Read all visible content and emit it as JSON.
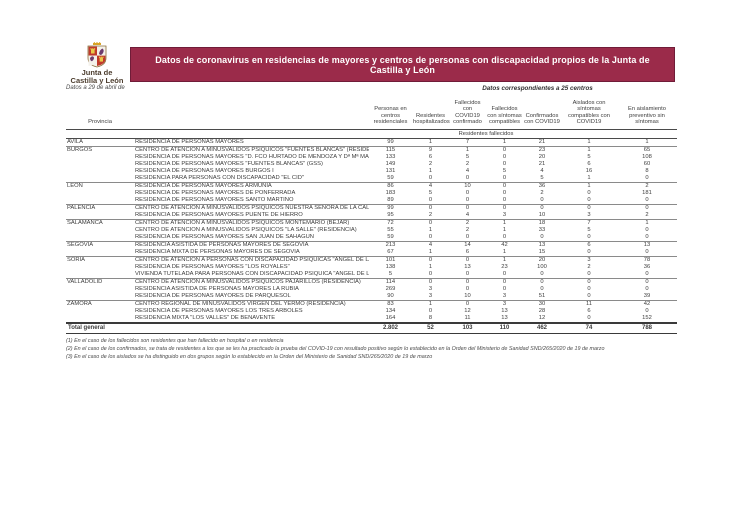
{
  "logo": {
    "line1": "Junta de",
    "line2": "Castilla y León"
  },
  "header": {
    "title": "Datos de coronavirus en residencias de mayores y centros de personas con discapacidad propios de la Junta de Castilla y León",
    "date_note": "Datos a 29 de abril de",
    "centers_note": "Datos correspondientes a 25 centros",
    "banner_color": "#9b2b4a"
  },
  "table": {
    "provincia_header": "Provincia",
    "subheader": "Residentes fallecidos",
    "columns": [
      "Personas en centros residenciales",
      "Residentes hospitalizados",
      "Fallecidos con COVID19 confirmado",
      "Fallecidos con síntomas compatibles",
      "Confirmados con COVID19",
      "Aislados con síntomas compatibles con COVID19",
      "En aislamiento preventivo sin síntomas"
    ],
    "rows": [
      {
        "provincia": "AVILA",
        "group_start": false,
        "centro": "RESIDENCIA DE PERSONAS MAYORES",
        "values": [
          99,
          1,
          7,
          1,
          21,
          1,
          1
        ]
      },
      {
        "provincia": "BURGOS",
        "group_start": true,
        "centro": "CENTRO DE ATENCION A MINUSVALIDOS PSIQUICOS \"FUENTES BLANCAS\" (RESIDENCIA",
        "values": [
          115,
          9,
          1,
          0,
          23,
          1,
          65
        ]
      },
      {
        "provincia": "",
        "group_start": false,
        "centro": "RESIDENCIA DE PERSONAS MAYORES \"D. FCO HURTADO DE MENDOZA Y Dª Mª MARDOM",
        "values": [
          133,
          6,
          5,
          0,
          20,
          5,
          108
        ]
      },
      {
        "provincia": "",
        "group_start": false,
        "centro": "RESIDENCIA DE PERSONAS MAYORES \"FUENTES BLANCAS\" (GSS)",
        "values": [
          149,
          2,
          2,
          0,
          21,
          6,
          60
        ]
      },
      {
        "provincia": "",
        "group_start": false,
        "centro": "RESIDENCIA DE PERSONAS MAYORES BURGOS I",
        "values": [
          131,
          1,
          4,
          5,
          4,
          16,
          8
        ]
      },
      {
        "provincia": "",
        "group_start": false,
        "centro": "RESIDENCIA PARA PERSONAS CON DISCAPACIDAD  \"EL CID\"",
        "values": [
          59,
          0,
          0,
          0,
          5,
          1,
          0
        ]
      },
      {
        "provincia": "LEON",
        "group_start": true,
        "centro": "RESIDENCIA DE PERSONAS MAYORES ARMUNIA",
        "values": [
          86,
          4,
          10,
          0,
          36,
          1,
          2
        ]
      },
      {
        "provincia": "",
        "group_start": false,
        "centro": "RESIDENCIA DE PERSONAS MAYORES DE PONFERRADA",
        "values": [
          183,
          5,
          0,
          0,
          2,
          0,
          181
        ]
      },
      {
        "provincia": "",
        "group_start": false,
        "centro": "RESIDENCIA DE PERSONAS MAYORES SANTO MARTINO",
        "values": [
          89,
          0,
          0,
          0,
          0,
          0,
          0
        ]
      },
      {
        "provincia": "PALENCIA",
        "group_start": true,
        "centro": "CENTRO DE ATENCION A MINUSVALIDOS PSIQUICOS NUESTRA SEÑORA DE LA CALLE",
        "values": [
          99,
          0,
          0,
          0,
          0,
          0,
          0
        ]
      },
      {
        "provincia": "",
        "group_start": false,
        "centro": "RESIDENCIA DE PERSONAS MAYORES PUENTE DE HIERRO",
        "values": [
          95,
          2,
          4,
          3,
          10,
          3,
          2
        ]
      },
      {
        "provincia": "SALAMANCA",
        "group_start": true,
        "centro": "CENTRO DE ATENCION A MINUSVALIDOS PSIQUICOS MONTEMARIO (BEJAR)",
        "values": [
          72,
          0,
          2,
          1,
          18,
          7,
          1
        ]
      },
      {
        "provincia": "",
        "group_start": false,
        "centro": "CENTRO DE ATENCION A MINUSVALIDOS PSIQUICOS \"LA SALLE\" (RESIDENCIA)",
        "values": [
          55,
          1,
          2,
          1,
          33,
          5,
          0
        ]
      },
      {
        "provincia": "",
        "group_start": false,
        "centro": "RESIDENCIA DE PERSONAS MAYORES SAN JUAN DE SAHAGUN",
        "values": [
          59,
          0,
          0,
          0,
          0,
          0,
          0
        ]
      },
      {
        "provincia": "SEGOVIA",
        "group_start": true,
        "centro": "RESIDENCIA ASISTIDA DE PERSONAS MAYORES DE SEGOVIA",
        "values": [
          213,
          4,
          14,
          42,
          13,
          6,
          13
        ]
      },
      {
        "provincia": "",
        "group_start": false,
        "centro": "RESIDENCIA MIXTA DE PERSONAS MAYORES DE SEGOVIA",
        "values": [
          67,
          1,
          6,
          1,
          15,
          0,
          0
        ]
      },
      {
        "provincia": "SORIA",
        "group_start": true,
        "centro": "CENTRO DE ATENCION A PERSONAS CON DISCAPACIDAD PSIQUICAS \"ANGEL DE LA GU",
        "values": [
          101,
          0,
          0,
          1,
          20,
          3,
          78
        ]
      },
      {
        "provincia": "",
        "group_start": false,
        "centro": "RESIDENCIA DE PERSONAS MAYORES \"LOS ROYALES\"",
        "values": [
          138,
          1,
          13,
          23,
          100,
          2,
          36
        ]
      },
      {
        "provincia": "",
        "group_start": false,
        "centro": "VIVIENDA TUTELADA PARA PERSONAS CON DISCAPACIDAD PSIQUICA \"ANGEL DE LA GU",
        "values": [
          5,
          0,
          0,
          0,
          0,
          0,
          0
        ]
      },
      {
        "provincia": "VALLADOLID",
        "group_start": true,
        "centro": "CENTRO DE ATENCION A MINUSVALIDOS PSIQUICOS PAJARILLOS (RESIDENCIA)",
        "values": [
          114,
          0,
          0,
          0,
          0,
          0,
          0
        ]
      },
      {
        "provincia": "",
        "group_start": false,
        "centro": "RESIDENCIA ASISTIDA DE PERSONAS MAYORES LA RUBIA",
        "values": [
          269,
          3,
          0,
          0,
          0,
          0,
          0
        ]
      },
      {
        "provincia": "",
        "group_start": false,
        "centro": "RESIDENCIA DE PERSONAS MAYORES DE PARQUESOL",
        "values": [
          90,
          3,
          10,
          3,
          51,
          0,
          39
        ]
      },
      {
        "provincia": "ZAMORA",
        "group_start": true,
        "centro": "CENTRO REGIONAL DE MINUSVALIDOS VIRGEN DEL YERMO (RESIDENCIA)",
        "values": [
          83,
          1,
          0,
          3,
          30,
          11,
          42
        ]
      },
      {
        "provincia": "",
        "group_start": false,
        "centro": "RESIDENCIA DE PERSONAS MAYORES LOS TRES ARBOLES",
        "values": [
          134,
          0,
          12,
          13,
          28,
          6,
          0
        ]
      },
      {
        "provincia": "",
        "group_start": false,
        "centro": "RESIDENCIA MIXTA \"LOS VALLES\"  DE BENAVENTE",
        "values": [
          164,
          8,
          11,
          13,
          12,
          0,
          152
        ]
      }
    ],
    "total": {
      "label": "Total general",
      "values": [
        "2.802",
        "52",
        "103",
        "110",
        "462",
        "74",
        "788"
      ]
    }
  },
  "footnotes": [
    "(1) En el caso de los fallecidos son residentes que han fallecido en hospital o en residencia",
    "(2) En el caso de los confirmados, se trata de residentes a los que se les ha practicado la prueba del COVID-19 con resultado positivo según lo establecido en la Orden del Ministerio de Sanidad SND/265/2020 de 19 de marzo",
    "(3) En el caso de los aislados se ha distinguido en dos grupos según lo establecido en la Orden del Ministerio de Sanidad SND/265/2020 de 19 de marzo"
  ]
}
